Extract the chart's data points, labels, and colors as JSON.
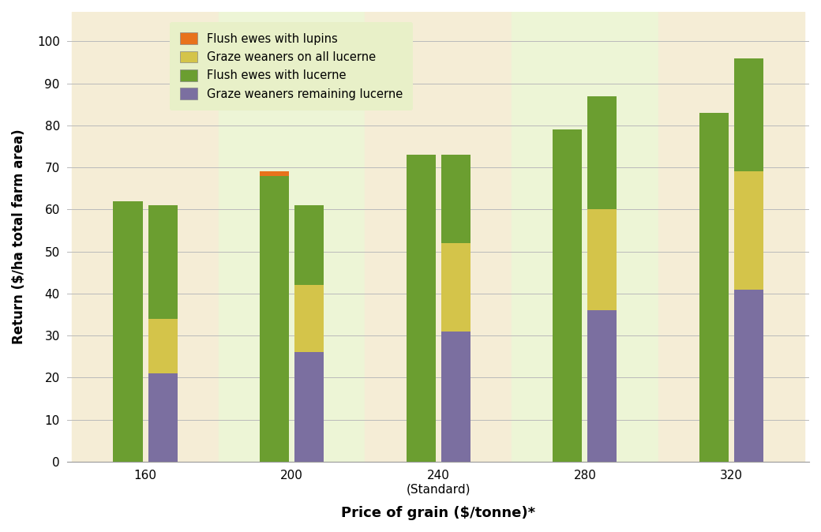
{
  "prices": [
    "160",
    "200",
    "240\n(Standard)",
    "280",
    "320"
  ],
  "xlabel": "Price of grain ($/tonne)*",
  "ylabel": "Return ($/ha total farm area)",
  "yticks": [
    0,
    10,
    20,
    30,
    40,
    50,
    60,
    70,
    80,
    90,
    100
  ],
  "flush_green": [
    62,
    68,
    73,
    79,
    83
  ],
  "flush_orange": [
    0,
    1,
    0,
    0,
    0
  ],
  "graze_purple": [
    21,
    26,
    31,
    36,
    41
  ],
  "graze_yellow": [
    13,
    16,
    21,
    24,
    28
  ],
  "graze_green": [
    27,
    19,
    21,
    27,
    27
  ],
  "graze_orange": [
    0,
    0,
    0,
    0,
    0
  ],
  "color_flush_green": "#6b9e30",
  "color_flush_orange": "#e8721c",
  "color_graze_purple": "#7b6fa0",
  "color_graze_yellow": "#d4c44a",
  "color_graze_green": "#6b9e30",
  "color_graze_orange": "#e8721c",
  "bg_odd": "#f5edd6",
  "bg_even": "#edf5d6",
  "legend_labels": [
    "Flush ewes with lupins",
    "Graze weaners on all lucerne",
    "Flush ewes with lucerne",
    "Graze weaners remaining lucerne"
  ],
  "legend_colors": [
    "#e8721c",
    "#d4c44a",
    "#6b9e30",
    "#7b6fa0"
  ],
  "legend_bg": "#e8f0c8"
}
